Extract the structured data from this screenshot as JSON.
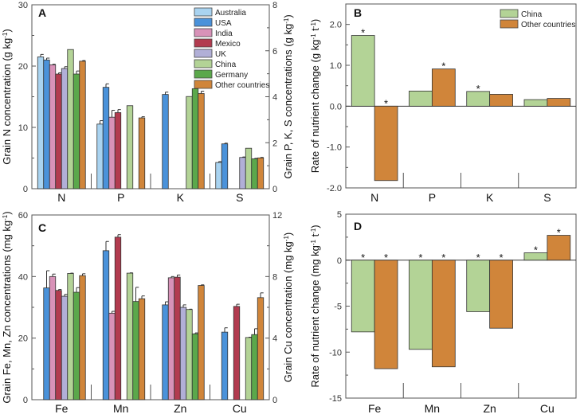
{
  "colors": {
    "Australia": "#a9d3f0",
    "USA": "#4a92da",
    "India": "#d892b8",
    "Mexico": "#b23b4f",
    "UK": "#b1afd7",
    "China": "#b3d396",
    "Germany": "#5ba84b",
    "Other countries": "#d0853a"
  },
  "chart_data": [
    {
      "panel": "A",
      "type": "bar",
      "categories": [
        "N",
        "P",
        "K",
        "S"
      ],
      "ylabel": {
        "main": "Grain N concentration (g kg",
        "sup": "-1",
        "end": ")"
      },
      "ylim": [
        0,
        30
      ],
      "yticks": [
        0,
        10,
        20,
        30
      ],
      "y2label": {
        "main": "Grain P, K, S concentrations (g kg",
        "sup": "-1",
        "end": ")"
      },
      "y2lim": [
        0,
        8
      ],
      "y2ticks": [
        0,
        2,
        4,
        6,
        8
      ],
      "note": "N on left axis; P, K, S on right axis",
      "legend": [
        "Australia",
        "USA",
        "India",
        "Mexico",
        "UK",
        "China",
        "Germany",
        "Other countries"
      ],
      "legend_position": "top-right",
      "series": [
        {
          "name": "Australia",
          "values": [
            21.5,
            2.81,
            null,
            1.14
          ],
          "errors": [
            0.4,
            0.15,
            null,
            0.04
          ]
        },
        {
          "name": "USA",
          "values": [
            21.0,
            4.41,
            4.1,
            1.95
          ],
          "errors": [
            0.3,
            0.15,
            0.1,
            0.03
          ]
        },
        {
          "name": "India",
          "values": [
            20.2,
            3.11,
            null,
            null
          ],
          "errors": [
            0.1,
            0.3,
            null,
            null
          ]
        },
        {
          "name": "Mexico",
          "values": [
            18.7,
            3.31,
            null,
            null
          ],
          "errors": [
            0.2,
            0.13,
            null,
            null
          ]
        },
        {
          "name": "UK",
          "values": [
            19.6,
            null,
            null,
            1.36
          ],
          "errors": [
            0.3,
            null,
            null,
            0.02
          ]
        },
        {
          "name": "China",
          "values": [
            22.7,
            3.61,
            4.01,
            1.76
          ],
          "errors": [
            0,
            0,
            0,
            0
          ]
        },
        {
          "name": "Germany",
          "values": [
            18.7,
            null,
            4.35,
            1.3
          ],
          "errors": [
            0.5,
            null,
            0.3,
            0.02
          ]
        },
        {
          "name": "Other countries",
          "values": [
            20.8,
            3.08,
            4.14,
            1.34
          ],
          "errors": [
            0.1,
            0.05,
            0.1,
            0.02
          ]
        }
      ]
    },
    {
      "panel": "B",
      "type": "bar",
      "categories": [
        "N",
        "P",
        "K",
        "S"
      ],
      "ylabel": {
        "main": "Rate of nutrient change (g kg",
        "sup": "-1",
        "mid": " t",
        "sup2": "-1",
        "end": ")"
      },
      "ylim": [
        -2.0,
        2.5
      ],
      "yticks": [
        -2.0,
        -1.0,
        0.0,
        1.0,
        2.0
      ],
      "ytick_labels": [
        "-2.0",
        "-1.0",
        "0.0",
        "1.0",
        "2.0"
      ],
      "legend": [
        "China",
        "Other countries"
      ],
      "legend_position": "top-right",
      "series": [
        {
          "name": "China",
          "values": [
            1.73,
            0.37,
            0.36,
            0.16
          ],
          "significant": [
            true,
            false,
            true,
            false
          ]
        },
        {
          "name": "Other countries",
          "values": [
            -1.82,
            0.91,
            0.29,
            0.19
          ],
          "significant": [
            true,
            true,
            false,
            false
          ]
        }
      ]
    },
    {
      "panel": "C",
      "type": "bar",
      "categories": [
        "Fe",
        "Mn",
        "Zn",
        "Cu"
      ],
      "ylabel": {
        "main": "Grain Fe, Mn, Zn concentrations (mg kg",
        "sup": "-1",
        "end": ")"
      },
      "ylim": [
        0,
        60
      ],
      "yticks": [
        0,
        20,
        40,
        60
      ],
      "y2label": {
        "main": "Grain Cu concentration (mg kg",
        "sup": "-1",
        "end": ")"
      },
      "y2lim": [
        0,
        12
      ],
      "y2ticks": [
        0,
        4,
        8,
        12
      ],
      "note": "Fe, Mn, Zn on left axis; Cu on right axis",
      "series": [
        {
          "name": "Australia",
          "values": [
            null,
            null,
            null,
            null
          ],
          "errors": [
            null,
            null,
            null,
            null
          ]
        },
        {
          "name": "USA",
          "values": [
            36.3,
            48.4,
            30.8,
            4.39
          ],
          "errors": [
            5.6,
            3.0,
            1.0,
            0.28
          ]
        },
        {
          "name": "India",
          "values": [
            40.0,
            28.1,
            39.6,
            null
          ],
          "errors": [
            0.8,
            0.6,
            0.4,
            null
          ]
        },
        {
          "name": "Mexico",
          "values": [
            35.5,
            52.8,
            39.8,
            6.06
          ],
          "errors": [
            0.3,
            0.8,
            0.7,
            0.14
          ]
        },
        {
          "name": "UK",
          "values": [
            33.6,
            null,
            30.0,
            null
          ],
          "errors": [
            0.6,
            null,
            0.8,
            null
          ]
        },
        {
          "name": "China",
          "values": [
            41.0,
            41.1,
            29.3,
            4.04
          ],
          "errors": [
            0.1,
            0.1,
            0.1,
            0.02
          ]
        },
        {
          "name": "Germany",
          "values": [
            34.9,
            31.9,
            21.4,
            4.23
          ],
          "errors": [
            1.5,
            4.6,
            0.3,
            0.38
          ]
        },
        {
          "name": "Other countries",
          "values": [
            40.3,
            32.8,
            37.1,
            6.63
          ],
          "errors": [
            0.6,
            0.9,
            0.2,
            0.31
          ]
        }
      ]
    },
    {
      "panel": "D",
      "type": "bar",
      "categories": [
        "Fe",
        "Mn",
        "Zn",
        "Cu"
      ],
      "ylabel": {
        "main": "Rate of nutrient change (mg kg",
        "sup": "-1",
        "mid": " t",
        "sup2": "-1",
        "end": ")"
      },
      "ylim": [
        -15,
        5
      ],
      "yticks": [
        -15,
        -10,
        -5,
        0,
        5
      ],
      "ytick_labels": [
        "-15",
        "-10",
        "-5",
        "0",
        "5"
      ],
      "series": [
        {
          "name": "China",
          "values": [
            -7.8,
            -9.7,
            -5.6,
            0.8
          ],
          "significant": [
            true,
            true,
            true,
            true
          ]
        },
        {
          "name": "Other countries",
          "values": [
            -11.8,
            -11.6,
            -7.4,
            2.7
          ],
          "significant": [
            true,
            true,
            true,
            true
          ]
        }
      ]
    }
  ],
  "significance_marker": "*"
}
